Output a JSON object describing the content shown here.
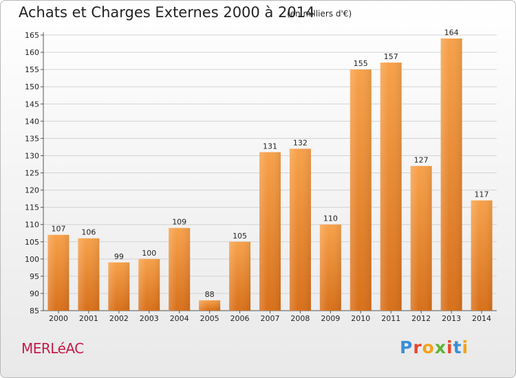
{
  "title": "Achats et Charges Externes 2000 à 2014",
  "unit": "(en milliers d'€)",
  "commune": "MERLéAC",
  "logo": {
    "letters": [
      "P",
      "r",
      "o",
      "x",
      "i",
      "t",
      "i"
    ],
    "colors": [
      "#3a8fd6",
      "#e8462f",
      "#f3a21b",
      "#5cb531",
      "#e8462f",
      "#3a8fd6",
      "#f3a21b"
    ]
  },
  "chart_data": {
    "type": "bar",
    "categories": [
      "2000",
      "2001",
      "2002",
      "2003",
      "2004",
      "2005",
      "2006",
      "2007",
      "2008",
      "2009",
      "2010",
      "2011",
      "2012",
      "2013",
      "2014"
    ],
    "values": [
      107,
      106,
      99,
      100,
      109,
      88,
      105,
      131,
      132,
      110,
      155,
      157,
      127,
      164,
      117
    ],
    "ylim": [
      85,
      165
    ],
    "yticks": [
      85,
      90,
      95,
      100,
      105,
      110,
      115,
      120,
      125,
      130,
      135,
      140,
      145,
      150,
      155,
      160,
      165
    ],
    "grid": true,
    "bar_color": "#f08c2a"
  }
}
